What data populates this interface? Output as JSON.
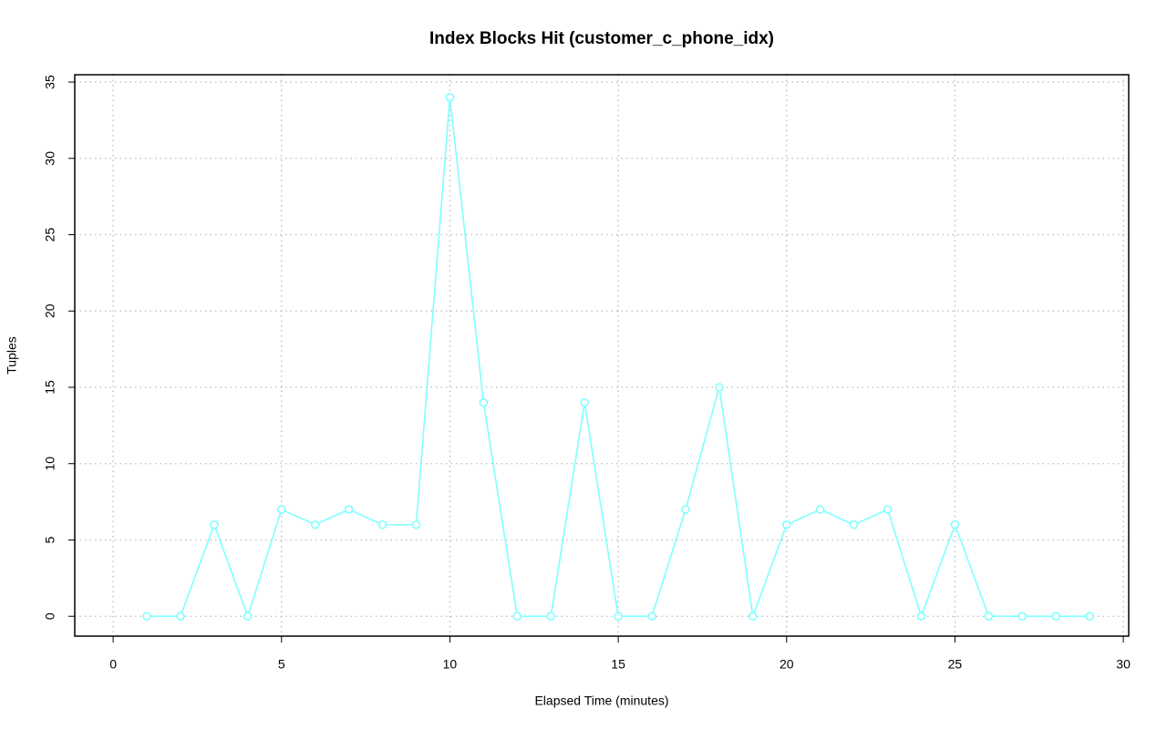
{
  "chart_data": {
    "type": "line",
    "title": "Index Blocks Hit (customer_c_phone_idx)",
    "x_label": "Elapsed Time (minutes)",
    "y_label": "Tuples",
    "x": [
      1,
      2,
      3,
      4,
      5,
      6,
      7,
      8,
      9,
      10,
      11,
      12,
      13,
      14,
      15,
      16,
      17,
      18,
      19,
      20,
      21,
      22,
      23,
      24,
      25,
      26,
      27,
      28,
      29
    ],
    "series": [
      {
        "color": "#80ffff",
        "values": [
          0,
          0,
          6,
          0,
          7,
          6,
          7,
          6,
          6,
          34,
          14,
          0,
          0,
          14,
          0,
          0,
          7,
          15,
          0,
          6,
          7,
          6,
          7,
          0,
          6,
          0,
          0,
          0,
          0
        ]
      }
    ],
    "xlim": [
      -1.14,
      30.16
    ],
    "xticks": [
      0,
      5,
      10,
      15,
      20,
      25,
      30
    ],
    "ylim": [
      -1.3,
      35.48
    ],
    "yticks": [
      0,
      5,
      10,
      15,
      20,
      25,
      30,
      35
    ],
    "grid": true
  }
}
